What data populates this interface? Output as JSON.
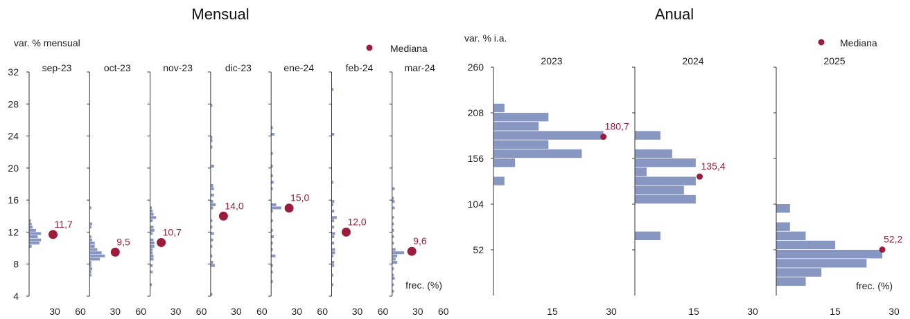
{
  "colors": {
    "bar": "#8896c2",
    "median": "#9b1c3c",
    "axis": "#333333"
  },
  "chart_data": [
    {
      "type": "bar",
      "orientation": "horizontal",
      "title": "Mensual",
      "ylabel": "var. % mensual",
      "xlabel": "frec. (%)",
      "legend": {
        "label": "Mediana",
        "placement": "top-right"
      },
      "ylim": [
        4,
        32
      ],
      "yticks": [
        "4",
        "8",
        "12",
        "16",
        "20",
        "24",
        "28",
        "32"
      ],
      "xlim": [
        0,
        60
      ],
      "xticks": [
        "30",
        "60"
      ],
      "bin_width": 0.4,
      "panels": [
        {
          "name": "sep-23",
          "median": 11.7,
          "median_label": "11,7",
          "bins": [
            [
              10.0,
              3
            ],
            [
              10.4,
              12
            ],
            [
              10.8,
              14
            ],
            [
              11.2,
              10
            ],
            [
              11.6,
              14
            ],
            [
              12.0,
              8
            ],
            [
              12.4,
              4
            ],
            [
              12.8,
              3
            ],
            [
              13.2,
              2
            ]
          ]
        },
        {
          "name": "oct-23",
          "median": 9.5,
          "median_label": "9,5",
          "bins": [
            [
              6.4,
              2
            ],
            [
              6.8,
              2
            ],
            [
              7.2,
              3
            ],
            [
              7.6,
              2
            ],
            [
              8.0,
              2
            ],
            [
              8.4,
              12
            ],
            [
              8.8,
              18
            ],
            [
              9.2,
              14
            ],
            [
              9.6,
              9
            ],
            [
              10.0,
              6
            ],
            [
              10.4,
              6
            ],
            [
              10.8,
              3
            ],
            [
              11.2,
              2
            ],
            [
              12.4,
              2
            ],
            [
              12.8,
              3
            ],
            [
              14.8,
              2
            ]
          ]
        },
        {
          "name": "nov-23",
          "median": 10.7,
          "median_label": "10,7",
          "bins": [
            [
              5.2,
              2
            ],
            [
              6.8,
              3
            ],
            [
              7.6,
              3
            ],
            [
              8.4,
              4
            ],
            [
              8.8,
              4
            ],
            [
              9.2,
              3
            ],
            [
              9.6,
              3
            ],
            [
              10.0,
              5
            ],
            [
              10.4,
              5
            ],
            [
              10.8,
              4
            ],
            [
              11.6,
              3
            ],
            [
              12.0,
              5
            ],
            [
              12.4,
              4
            ],
            [
              13.2,
              3
            ],
            [
              13.6,
              7
            ],
            [
              14.0,
              4
            ],
            [
              14.4,
              3
            ],
            [
              14.8,
              2
            ]
          ]
        },
        {
          "name": "dic-23",
          "median": 14.0,
          "median_label": "14,0",
          "bins": [
            [
              4.0,
              2
            ],
            [
              7.6,
              5
            ],
            [
              8.0,
              3
            ],
            [
              8.8,
              2
            ],
            [
              10.0,
              2
            ],
            [
              10.8,
              3
            ],
            [
              11.6,
              4
            ],
            [
              12.4,
              2
            ],
            [
              13.2,
              2
            ],
            [
              14.8,
              3
            ],
            [
              15.2,
              6
            ],
            [
              15.6,
              3
            ],
            [
              16.4,
              4
            ],
            [
              17.2,
              4
            ],
            [
              17.6,
              3
            ],
            [
              20.0,
              4
            ],
            [
              22.4,
              2
            ],
            [
              23.2,
              2
            ],
            [
              23.6,
              2
            ],
            [
              27.6,
              2
            ]
          ]
        },
        {
          "name": "ene-24",
          "median": 15.0,
          "median_label": "15,0",
          "bins": [
            [
              5.6,
              2
            ],
            [
              6.8,
              2
            ],
            [
              7.6,
              2
            ],
            [
              8.8,
              5
            ],
            [
              9.6,
              2
            ],
            [
              10.4,
              2
            ],
            [
              11.2,
              3
            ],
            [
              12.0,
              2
            ],
            [
              13.2,
              2
            ],
            [
              14.4,
              2
            ],
            [
              14.8,
              12
            ],
            [
              15.2,
              6
            ],
            [
              17.2,
              2
            ],
            [
              18.0,
              3
            ],
            [
              18.8,
              2
            ],
            [
              20.0,
              2
            ],
            [
              21.6,
              2
            ],
            [
              24.0,
              4
            ],
            [
              24.8,
              2
            ]
          ]
        },
        {
          "name": "feb-24",
          "median": 12.0,
          "median_label": "12,0",
          "bins": [
            [
              5.2,
              2
            ],
            [
              6.4,
              2
            ],
            [
              7.6,
              3
            ],
            [
              8.0,
              3
            ],
            [
              8.8,
              2
            ],
            [
              9.2,
              4
            ],
            [
              9.6,
              4
            ],
            [
              10.4,
              3
            ],
            [
              11.2,
              3
            ],
            [
              11.6,
              4
            ],
            [
              12.4,
              3
            ],
            [
              13.2,
              3
            ],
            [
              13.6,
              6
            ],
            [
              14.4,
              3
            ],
            [
              15.2,
              2
            ],
            [
              15.6,
              3
            ],
            [
              18.0,
              2
            ],
            [
              24.0,
              3
            ],
            [
              29.6,
              2
            ]
          ]
        },
        {
          "name": "mar-24",
          "median": 9.6,
          "median_label": "9,6",
          "bins": [
            [
              4.4,
              2
            ],
            [
              5.2,
              2
            ],
            [
              6.0,
              3
            ],
            [
              6.4,
              2
            ],
            [
              7.2,
              2
            ],
            [
              8.0,
              6
            ],
            [
              8.4,
              4
            ],
            [
              8.8,
              6
            ],
            [
              9.2,
              14
            ],
            [
              9.6,
              4
            ],
            [
              10.4,
              2
            ],
            [
              11.2,
              2
            ],
            [
              12.0,
              2
            ],
            [
              12.8,
              2
            ],
            [
              13.6,
              2
            ],
            [
              14.8,
              3
            ],
            [
              15.6,
              3
            ],
            [
              16.0,
              2
            ],
            [
              17.2,
              3
            ]
          ]
        }
      ]
    },
    {
      "type": "bar",
      "orientation": "horizontal",
      "title": "Anual",
      "ylabel": "var. % i.a.",
      "xlabel": "frec. (%)",
      "legend": {
        "label": "Mediana",
        "placement": "top-right"
      },
      "ylim": [
        0,
        260
      ],
      "yticks": [
        "52",
        "104",
        "156",
        "208",
        "260"
      ],
      "xlim": [
        0,
        30
      ],
      "xticks": [
        "15",
        "30"
      ],
      "bin_width": 10.4,
      "panels": [
        {
          "name": "2023",
          "median": 180.7,
          "median_label": "180,7",
          "bins": [
            [
              124.8,
              2.8
            ],
            [
              145.6,
              5.5
            ],
            [
              156.0,
              22.5
            ],
            [
              166.4,
              14
            ],
            [
              176.8,
              28
            ],
            [
              187.2,
              11.5
            ],
            [
              197.6,
              14
            ],
            [
              208.0,
              2.8
            ]
          ]
        },
        {
          "name": "2024",
          "median": 135.4,
          "median_label": "135,4",
          "bins": [
            [
              62.4,
              6.5
            ],
            [
              104.0,
              15.5
            ],
            [
              114.4,
              12.5
            ],
            [
              124.8,
              15.5
            ],
            [
              135.2,
              3
            ],
            [
              145.6,
              15.5
            ],
            [
              156.0,
              9.5
            ],
            [
              176.8,
              6.5
            ]
          ]
        },
        {
          "name": "2025",
          "median": 52.2,
          "median_label": "52,2",
          "bins": [
            [
              10.4,
              7.5
            ],
            [
              20.8,
              11.5
            ],
            [
              31.2,
              23
            ],
            [
              41.6,
              27
            ],
            [
              52.0,
              15
            ],
            [
              62.4,
              7.5
            ],
            [
              72.8,
              3.5
            ],
            [
              93.6,
              3.5
            ]
          ]
        }
      ]
    }
  ]
}
